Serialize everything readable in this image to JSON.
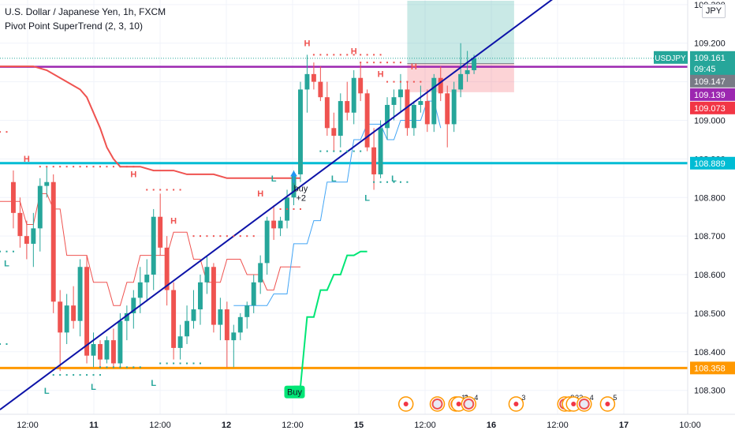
{
  "header": {
    "symbol_line": "U.S. Dollar / Japanese Yen, 1h, FXCM",
    "indicator_line": "Pivot Point SuperTrend (2, 3, 10)",
    "currency_button": "JPY"
  },
  "price_scale": {
    "ticks": [
      "109.300",
      "109.200",
      "109.100",
      "109.000",
      "108.900",
      "108.800",
      "108.700",
      "108.600",
      "108.500",
      "108.400",
      "108.300"
    ],
    "tag_symbol": "USDJPY",
    "tag_price": "109.161",
    "tag_countdown": "09:45",
    "tags": [
      {
        "value": 109.147,
        "label": "109.147",
        "color": "#787b86"
      },
      {
        "value": 109.139,
        "label": "109.139",
        "color": "#9c27b0"
      },
      {
        "value": 109.073,
        "label": "109.073",
        "color": "#f23645"
      },
      {
        "value": 108.889,
        "label": "108.889",
        "color": "#00bcd4"
      },
      {
        "value": 108.358,
        "label": "108.358",
        "color": "#ff9800"
      }
    ]
  },
  "time_axis": {
    "labels": [
      "12:00",
      "11",
      "12:00",
      "12",
      "12:00",
      "15",
      "12:00",
      "16",
      "12:00",
      "17",
      "10:00"
    ],
    "bold": [
      false,
      true,
      false,
      true,
      false,
      true,
      false,
      true,
      false,
      true,
      false
    ]
  },
  "chart_data": {
    "type": "candlestick",
    "title": "U.S. Dollar / Japanese Yen, 1h, FXCM",
    "indicator": "Pivot Point SuperTrend (2, 3, 10)",
    "ylim": [
      108.238,
      109.312
    ],
    "bar_index_range": [
      -2,
      101
    ],
    "candles": [
      [
        108.84,
        108.87,
        108.72,
        108.76
      ],
      [
        108.76,
        108.8,
        108.67,
        108.7
      ],
      [
        108.7,
        108.74,
        108.64,
        108.68
      ],
      [
        108.68,
        108.76,
        108.62,
        108.72
      ],
      [
        108.72,
        108.85,
        108.66,
        108.83
      ],
      [
        108.83,
        108.88,
        108.8,
        108.84
      ],
      [
        108.84,
        108.86,
        108.5,
        108.53
      ],
      [
        108.53,
        108.56,
        108.35,
        108.45
      ],
      [
        108.45,
        108.55,
        108.42,
        108.52
      ],
      [
        108.52,
        108.57,
        108.46,
        108.48
      ],
      [
        108.48,
        108.64,
        108.44,
        108.62
      ],
      [
        108.62,
        108.65,
        108.37,
        108.39
      ],
      [
        108.39,
        108.45,
        108.36,
        108.42
      ],
      [
        108.42,
        108.43,
        108.36,
        108.38
      ],
      [
        108.38,
        108.44,
        108.37,
        108.43
      ],
      [
        108.43,
        108.46,
        108.36,
        108.37
      ],
      [
        108.37,
        108.5,
        108.36,
        108.48
      ],
      [
        108.48,
        108.52,
        108.43,
        108.5
      ],
      [
        108.5,
        108.56,
        108.46,
        108.54
      ],
      [
        108.54,
        108.62,
        108.5,
        108.58
      ],
      [
        108.58,
        108.64,
        108.53,
        108.6
      ],
      [
        108.6,
        108.77,
        108.56,
        108.75
      ],
      [
        108.75,
        108.81,
        108.65,
        108.67
      ],
      [
        108.67,
        108.7,
        108.52,
        108.56
      ],
      [
        108.56,
        108.58,
        108.38,
        108.41
      ],
      [
        108.41,
        108.47,
        108.38,
        108.44
      ],
      [
        108.44,
        108.52,
        108.42,
        108.48
      ],
      [
        108.48,
        108.56,
        108.46,
        108.51
      ],
      [
        108.51,
        108.6,
        108.47,
        108.58
      ],
      [
        108.58,
        108.65,
        108.55,
        108.62
      ],
      [
        108.62,
        108.63,
        108.45,
        108.47
      ],
      [
        108.47,
        108.54,
        108.43,
        108.51
      ],
      [
        108.51,
        108.53,
        108.36,
        108.43
      ],
      [
        108.43,
        108.47,
        108.36,
        108.45
      ],
      [
        108.45,
        108.5,
        108.43,
        108.49
      ],
      [
        108.49,
        108.53,
        108.46,
        108.52
      ],
      [
        108.52,
        108.6,
        108.5,
        108.58
      ],
      [
        108.58,
        108.65,
        108.55,
        108.63
      ],
      [
        108.63,
        108.75,
        108.6,
        108.74
      ],
      [
        108.74,
        108.78,
        108.69,
        108.72
      ],
      [
        108.72,
        108.75,
        108.7,
        108.74
      ],
      [
        108.74,
        108.82,
        108.72,
        108.8
      ],
      [
        108.8,
        108.87,
        108.78,
        108.86
      ],
      [
        108.86,
        109.1,
        108.84,
        109.08
      ],
      [
        109.08,
        109.17,
        109.02,
        109.12
      ],
      [
        109.12,
        109.15,
        109.08,
        109.1
      ],
      [
        109.1,
        109.14,
        109.05,
        109.06
      ],
      [
        109.06,
        109.1,
        108.96,
        108.98
      ],
      [
        108.98,
        109.02,
        108.92,
        108.96
      ],
      [
        108.96,
        109.07,
        108.93,
        109.05
      ],
      [
        109.05,
        109.1,
        109.0,
        109.02
      ],
      [
        109.02,
        109.13,
        108.99,
        109.11
      ],
      [
        109.11,
        109.15,
        109.05,
        109.07
      ],
      [
        109.07,
        109.08,
        108.92,
        108.93
      ],
      [
        108.93,
        108.98,
        108.82,
        108.86
      ],
      [
        108.86,
        109.0,
        108.85,
        108.98
      ],
      [
        108.98,
        109.06,
        108.95,
        109.04
      ],
      [
        109.04,
        109.08,
        109.0,
        109.06
      ],
      [
        109.06,
        109.12,
        109.02,
        109.08
      ],
      [
        109.08,
        109.1,
        108.96,
        108.98
      ],
      [
        108.98,
        109.05,
        108.96,
        109.04
      ],
      [
        109.04,
        109.09,
        109.02,
        109.05
      ],
      [
        109.05,
        109.08,
        108.97,
        108.99
      ],
      [
        108.99,
        109.12,
        108.97,
        109.11
      ],
      [
        109.11,
        109.14,
        109.05,
        109.07
      ],
      [
        109.07,
        109.09,
        108.93,
        108.99
      ],
      [
        108.99,
        109.1,
        108.97,
        109.08
      ],
      [
        109.08,
        109.2,
        109.06,
        109.12
      ],
      [
        109.12,
        109.18,
        109.1,
        109.13
      ],
      [
        109.13,
        109.17,
        109.12,
        109.161
      ]
    ],
    "supertrend": {
      "down_segments": [
        [
          [
            -2,
            109.14
          ],
          [
            1,
            109.14
          ],
          [
            3,
            109.14
          ],
          [
            5,
            109.13
          ],
          [
            7,
            109.11
          ],
          [
            8,
            109.1
          ],
          [
            10,
            109.08
          ],
          [
            11,
            109.06
          ],
          [
            13,
            108.98
          ],
          [
            14,
            108.93
          ],
          [
            15,
            108.9
          ],
          [
            16,
            108.88
          ],
          [
            19,
            108.88
          ],
          [
            21,
            108.87
          ],
          [
            24,
            108.87
          ],
          [
            26,
            108.86
          ],
          [
            28,
            108.86
          ],
          [
            30,
            108.86
          ],
          [
            32,
            108.85
          ],
          [
            34,
            108.85
          ],
          [
            36,
            108.85
          ],
          [
            38,
            108.85
          ],
          [
            40,
            108.85
          ],
          [
            41,
            108.85
          ],
          [
            42,
            108.85
          ],
          [
            43,
            108.85
          ]
        ]
      ],
      "up_segments": [
        [
          [
            42,
            108.31
          ],
          [
            43,
            108.31
          ],
          [
            44,
            108.49
          ],
          [
            45,
            108.49
          ],
          [
            46,
            108.56
          ],
          [
            47,
            108.56
          ],
          [
            48,
            108.6
          ],
          [
            49,
            108.6
          ],
          [
            50,
            108.65
          ],
          [
            51,
            108.65
          ],
          [
            52,
            108.66
          ],
          [
            53,
            108.66
          ]
        ]
      ]
    },
    "pivot_center_segments": [
      [
        [
          -2,
          108.79
        ],
        [
          1,
          108.79
        ],
        [
          2,
          108.73
        ],
        [
          3,
          108.73
        ],
        [
          4,
          108.81
        ],
        [
          5,
          108.81
        ],
        [
          6,
          108.77
        ],
        [
          7,
          108.77
        ],
        [
          8,
          108.65
        ],
        [
          11,
          108.65
        ],
        [
          12,
          108.58
        ],
        [
          14,
          108.58
        ],
        [
          15,
          108.52
        ],
        [
          16,
          108.52
        ],
        [
          17,
          108.58
        ],
        [
          18,
          108.58
        ],
        [
          19,
          108.65
        ],
        [
          23,
          108.65
        ],
        [
          24,
          108.71
        ],
        [
          26,
          108.71
        ],
        [
          27,
          108.64
        ],
        [
          28,
          108.64
        ],
        [
          29,
          108.58
        ],
        [
          31,
          108.58
        ],
        [
          32,
          108.64
        ],
        [
          34,
          108.64
        ],
        [
          35,
          108.6
        ],
        [
          37,
          108.6
        ],
        [
          38,
          108.56
        ],
        [
          39,
          108.56
        ],
        [
          40,
          108.62
        ],
        [
          43,
          108.62
        ]
      ],
      [
        [
          33,
          108.52
        ],
        [
          38,
          108.52
        ],
        [
          39,
          108.55
        ],
        [
          41,
          108.55
        ],
        [
          42,
          108.68
        ],
        [
          44,
          108.68
        ],
        [
          45,
          108.74
        ],
        [
          46,
          108.74
        ],
        [
          47,
          108.84
        ],
        [
          50,
          108.84
        ],
        [
          51,
          108.95
        ],
        [
          52,
          108.95
        ],
        [
          53,
          108.99
        ],
        [
          55,
          108.99
        ],
        [
          56,
          108.95
        ],
        [
          57,
          108.95
        ],
        [
          58,
          109.0
        ],
        [
          61,
          109.0
        ],
        [
          62,
          109.05
        ],
        [
          63,
          109.05
        ],
        [
          64,
          108.98
        ]
      ]
    ],
    "horizontal_lines": [
      {
        "y": 109.139,
        "color": "#9c27b0",
        "width": 2.5
      },
      {
        "y": 108.889,
        "color": "#00bcd4",
        "width": 3
      },
      {
        "y": 108.358,
        "color": "#ff9800",
        "width": 3
      },
      {
        "y": 109.161,
        "color": "#26a69a",
        "width": 1,
        "dotted": true
      }
    ],
    "trendline": {
      "from": [
        -2,
        108.25
      ],
      "to": [
        82,
        109.33
      ],
      "color": "#0d13a8"
    },
    "position": {
      "x_from": 59,
      "x_to": 75,
      "entry": 109.147,
      "target": 109.31,
      "stop": 109.073
    },
    "pivot_highs": [
      [
        2,
        108.88,
        "H"
      ],
      [
        18,
        108.84,
        "H"
      ],
      [
        24,
        108.72,
        "H"
      ],
      [
        37,
        108.79,
        "H"
      ],
      [
        44,
        109.18,
        "H"
      ],
      [
        51,
        109.16,
        "H"
      ],
      [
        55,
        109.1,
        "H"
      ],
      [
        60,
        109.12,
        "H"
      ]
    ],
    "pivot_lows": [
      [
        -1,
        108.65,
        "L"
      ],
      [
        5,
        108.32,
        "L"
      ],
      [
        12,
        108.33,
        "L"
      ],
      [
        21,
        108.34,
        "L"
      ],
      [
        39,
        108.87,
        "L"
      ],
      [
        48,
        108.87,
        "L"
      ],
      [
        53,
        108.82,
        "L"
      ],
      [
        57,
        108.87,
        "L"
      ]
    ],
    "pivot_high_dashes": [
      [
        -2,
        108.97,
        2
      ],
      [
        4,
        108.88,
        15
      ],
      [
        20,
        108.82,
        6
      ],
      [
        27,
        108.7,
        10
      ],
      [
        40,
        108.77,
        4
      ],
      [
        45,
        109.17,
        11
      ],
      [
        52,
        109.15,
        7
      ],
      [
        56,
        109.1,
        6
      ]
    ],
    "pivot_low_dashes": [
      [
        -2,
        108.66,
        3
      ],
      [
        -2,
        108.42,
        2
      ],
      [
        6,
        108.34,
        8
      ],
      [
        13,
        108.36,
        7
      ],
      [
        22,
        108.37,
        7
      ],
      [
        46,
        108.92,
        5
      ],
      [
        49,
        108.92,
        4
      ],
      [
        54,
        108.84,
        6
      ]
    ],
    "signals": [
      {
        "x": 42,
        "y": 108.83,
        "label": "buy",
        "sub": "+2"
      },
      {
        "x": 42,
        "y": 108.3,
        "label": "Buy"
      }
    ],
    "event_markers": [
      [
        58.8,
        "",
        ""
      ],
      [
        63.5,
        "us",
        ""
      ],
      [
        66.3,
        "us",
        "11"
      ],
      [
        66.7,
        "",
        "2"
      ],
      [
        68.2,
        "us",
        "4"
      ],
      [
        75.3,
        "",
        "3"
      ],
      [
        82.6,
        "us",
        "8"
      ],
      [
        83.3,
        "",
        "3"
      ],
      [
        83.9,
        "",
        "3"
      ],
      [
        85.5,
        "us",
        "4"
      ],
      [
        89,
        "",
        "5"
      ]
    ]
  }
}
